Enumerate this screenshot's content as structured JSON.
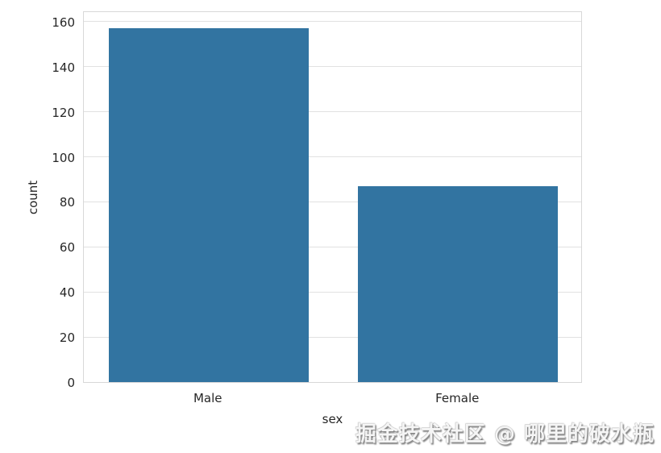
{
  "chart_data": {
    "type": "bar",
    "title": "",
    "categories": [
      "Male",
      "Female"
    ],
    "values": [
      157,
      87
    ],
    "xlabel": "sex",
    "ylabel": "count",
    "ylim": [
      0,
      165
    ],
    "yticks": [
      0,
      20,
      40,
      60,
      80,
      100,
      120,
      140,
      160
    ],
    "bar_color": "#3274a1",
    "bar_width_fraction": 0.8,
    "grid": "horizontal",
    "grid_color": "#e1e1e1",
    "axes_edge_color": "#d8d8d8",
    "tick_label_color": "#262626",
    "legend": "none"
  },
  "watermark": {
    "text": "掘金技术社区 @ 哪里的破水瓶"
  }
}
